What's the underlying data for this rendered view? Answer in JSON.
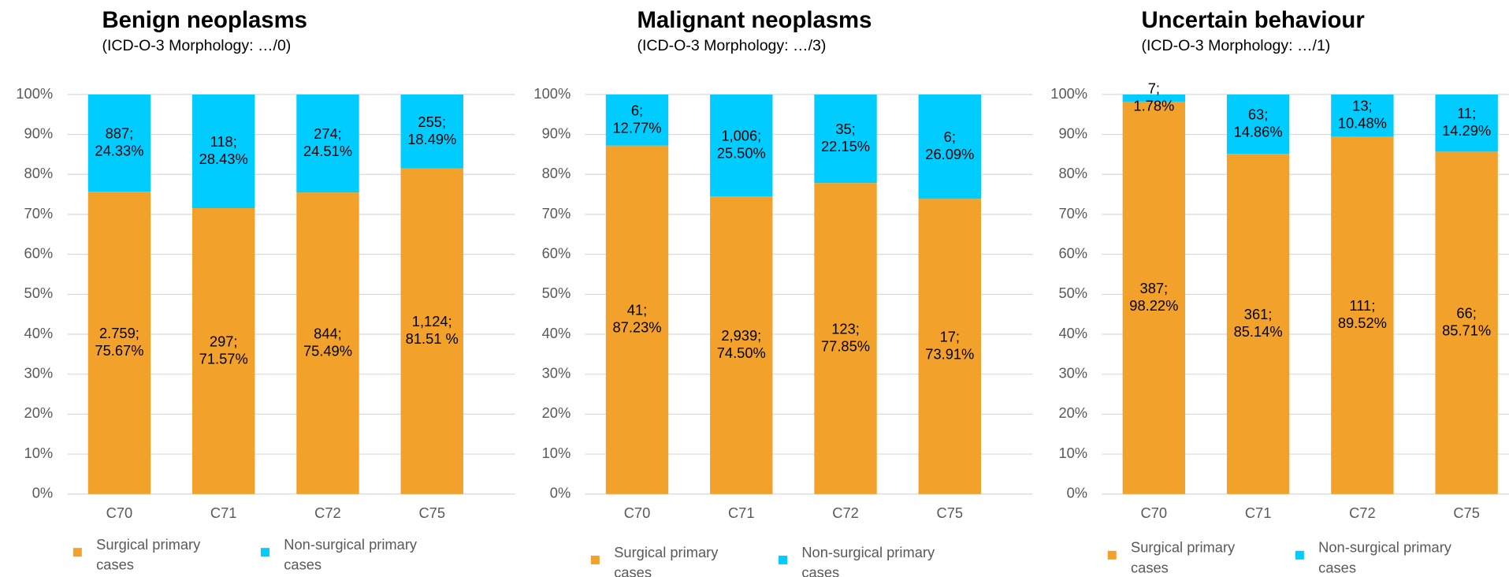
{
  "chart_data": [
    {
      "type": "bar",
      "stacked": true,
      "title": "Benign neoplasms",
      "subtitle": "(ICD-O-3 Morphology: …/0)",
      "categories": [
        "C70",
        "C71",
        "C72",
        "C75"
      ],
      "series": [
        {
          "name": "Surgical primary cases",
          "color": "#f2a22a",
          "values": [
            75.67,
            71.57,
            75.49,
            81.51
          ],
          "value_labels": [
            "2.759;\n75.67%",
            "297;\n71.57%",
            "844;\n75.49%",
            "1,124;\n81.51 %"
          ]
        },
        {
          "name": "Non-surgical primary cases",
          "color": "#00ccff",
          "values": [
            24.33,
            28.43,
            24.51,
            18.49
          ],
          "value_labels": [
            "887;\n24.33%",
            "118;\n28.43%",
            "274;\n24.51%",
            "255;\n18.49%"
          ]
        }
      ],
      "ylim": [
        0,
        100
      ],
      "yticks": [
        {
          "value": 0,
          "label": "0%"
        },
        {
          "value": 10,
          "label": "10%"
        },
        {
          "value": 20,
          "label": "20%"
        },
        {
          "value": 30,
          "label": "30%"
        },
        {
          "value": 40,
          "label": "40%"
        },
        {
          "value": 50,
          "label": "50%"
        },
        {
          "value": 60,
          "label": "60%"
        },
        {
          "value": 70,
          "label": "70%"
        },
        {
          "value": 80,
          "label": "80%"
        },
        {
          "value": 90,
          "label": "90%"
        },
        {
          "value": 100,
          "label": "100%"
        }
      ],
      "grid": true
    },
    {
      "type": "bar",
      "stacked": true,
      "title": "Malignant neoplasms",
      "subtitle": "(ICD-O-3 Morphology: …/3)",
      "categories": [
        "C70",
        "C71",
        "C72",
        "C75"
      ],
      "series": [
        {
          "name": "Surgical primary cases",
          "color": "#f2a22a",
          "values": [
            87.23,
            74.5,
            77.85,
            73.91
          ],
          "value_labels": [
            "41;\n87.23%",
            "2,939;\n74.50%",
            "123;\n77.85%",
            "17;\n73.91%"
          ]
        },
        {
          "name": "Non-surgical primary cases",
          "color": "#00ccff",
          "values": [
            12.77,
            25.5,
            22.15,
            26.09
          ],
          "value_labels": [
            "6;\n12.77%",
            "1,006;\n25.50%",
            "35;\n22.15%",
            "6;\n26.09%"
          ]
        }
      ],
      "ylim": [
        0,
        100
      ],
      "yticks": [
        {
          "value": 0,
          "label": "0%"
        },
        {
          "value": 10,
          "label": "10%"
        },
        {
          "value": 20,
          "label": "20%"
        },
        {
          "value": 30,
          "label": "30%"
        },
        {
          "value": 40,
          "label": "40%"
        },
        {
          "value": 50,
          "label": "50%"
        },
        {
          "value": 60,
          "label": "60%"
        },
        {
          "value": 70,
          "label": "70%"
        },
        {
          "value": 80,
          "label": "80%"
        },
        {
          "value": 90,
          "label": "90%"
        },
        {
          "value": 100,
          "label": "100%"
        }
      ],
      "grid": true
    },
    {
      "type": "bar",
      "stacked": true,
      "title": "Uncertain behaviour",
      "subtitle": "(ICD-O-3 Morphology: …/1)",
      "categories": [
        "C70",
        "C71",
        "C72",
        "C75"
      ],
      "series": [
        {
          "name": "Surgical primary cases",
          "color": "#f2a22a",
          "values": [
            98.22,
            85.14,
            89.52,
            85.71
          ],
          "value_labels": [
            "387;\n98.22%",
            "361;\n85.14%",
            "111;\n89.52%",
            "66;\n85.71%"
          ]
        },
        {
          "name": "Non-surgical primary cases",
          "color": "#00ccff",
          "values": [
            1.78,
            14.86,
            10.48,
            14.29
          ],
          "value_labels": [
            "7;\n1.78%",
            "63;\n14.86%",
            "13;\n10.48%",
            "11;\n14.29%"
          ]
        }
      ],
      "ylim": [
        0,
        100
      ],
      "yticks": [
        {
          "value": 0,
          "label": "0%"
        },
        {
          "value": 10,
          "label": "10%"
        },
        {
          "value": 20,
          "label": "20%"
        },
        {
          "value": 30,
          "label": "30%"
        },
        {
          "value": 40,
          "label": "40%"
        },
        {
          "value": 50,
          "label": "50%"
        },
        {
          "value": 60,
          "label": "60%"
        },
        {
          "value": 70,
          "label": "70%"
        },
        {
          "value": 80,
          "label": "80%"
        },
        {
          "value": 90,
          "label": "90%"
        },
        {
          "value": 100,
          "label": "100%"
        }
      ],
      "grid": true
    }
  ]
}
